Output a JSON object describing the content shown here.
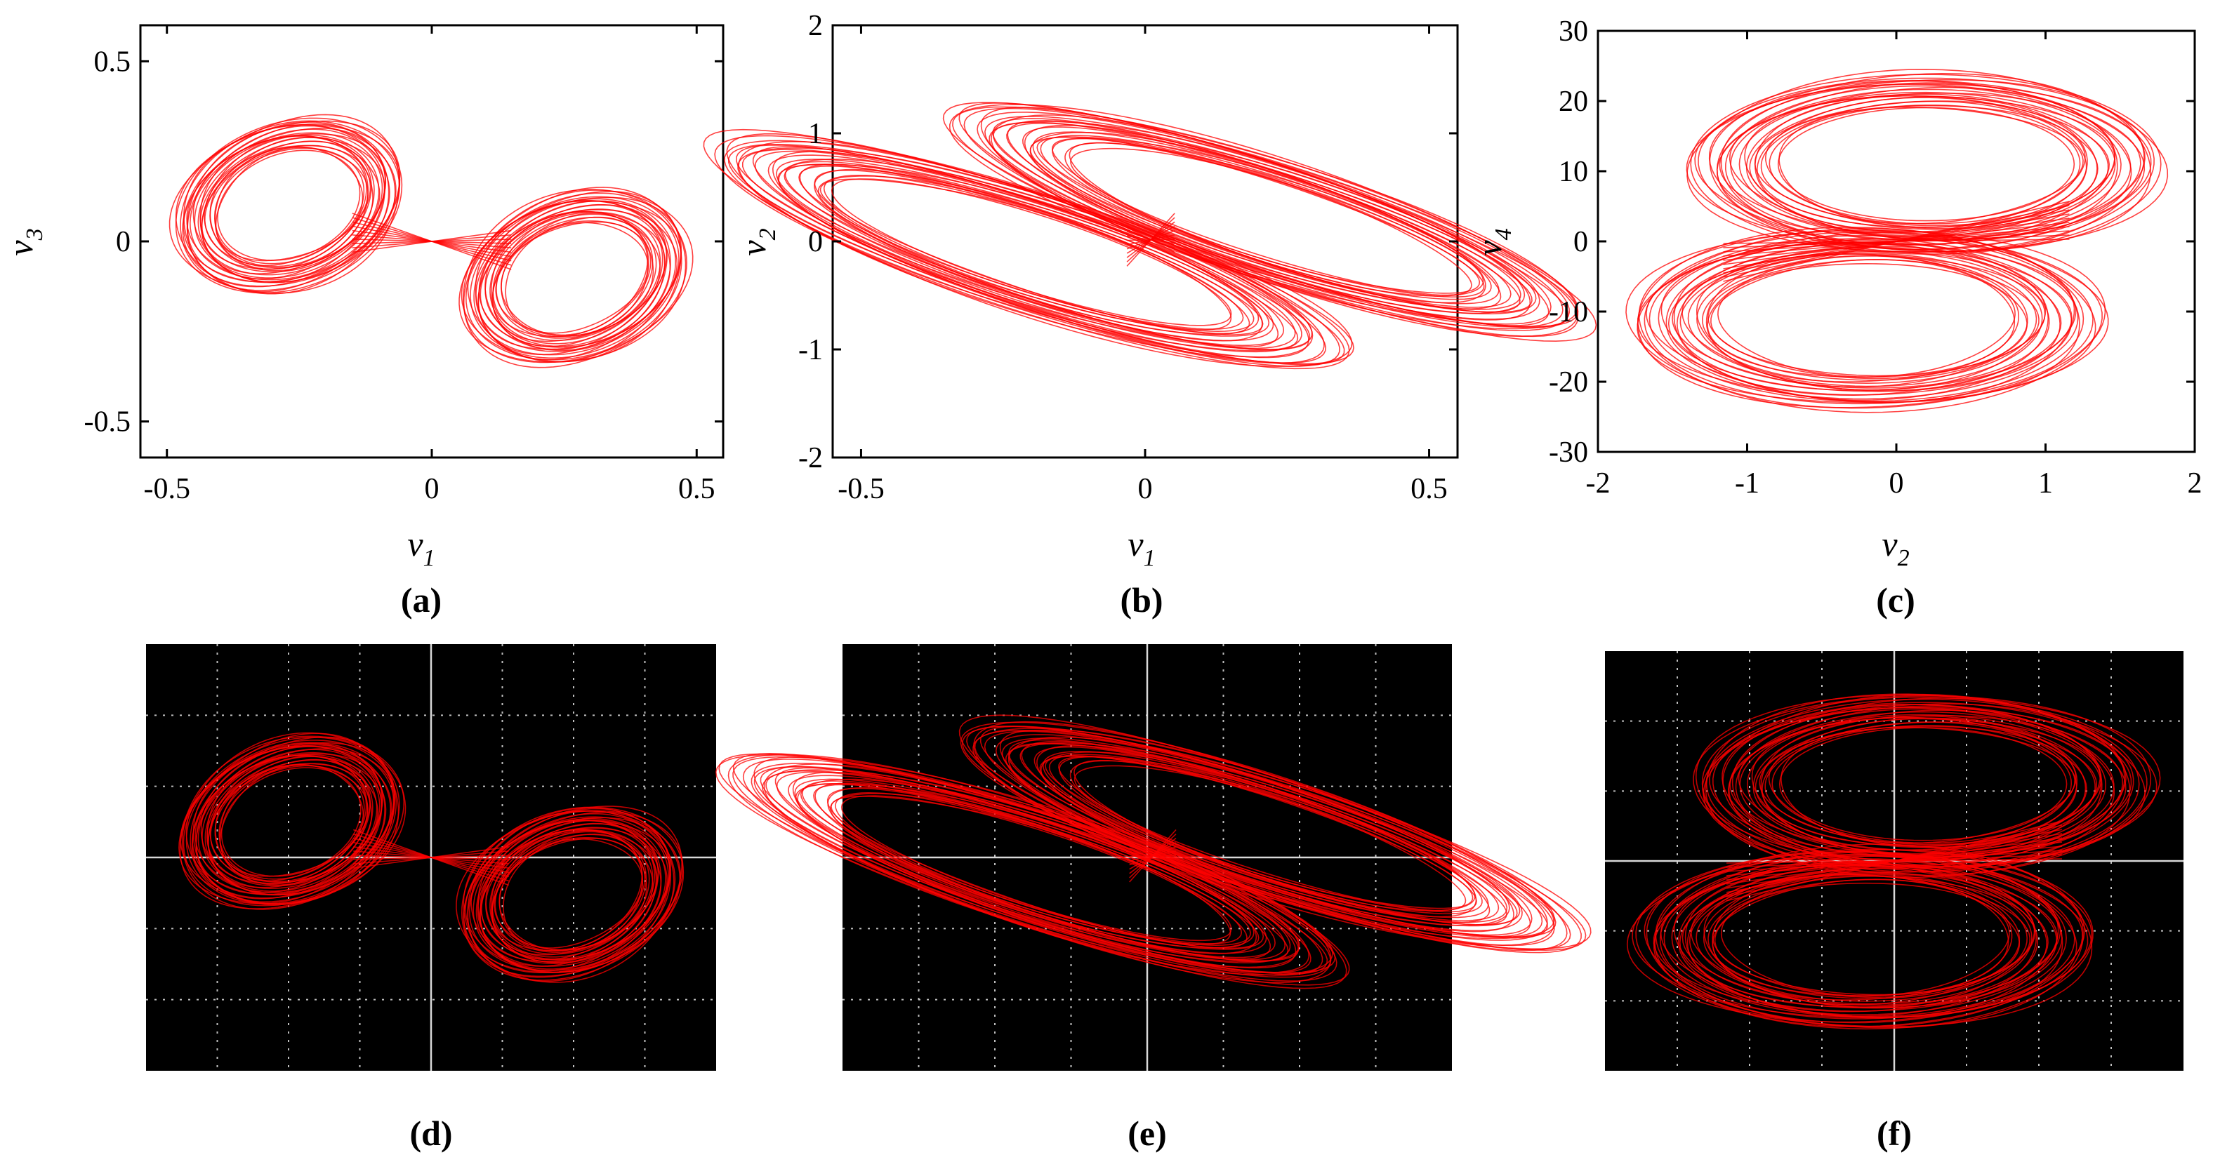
{
  "colors": {
    "trace": "#ff0000",
    "scope_background": "#000000",
    "scope_grid": "#bfbfbf"
  },
  "panel_labels": [
    "(a)",
    "(b)",
    "(c)",
    "(d)",
    "(e)",
    "(f)"
  ],
  "chart_data": [
    {
      "id": "a",
      "type": "scatter",
      "kind": "phase-portrait",
      "xlabel": "v",
      "xlabel_sub": "1",
      "ylabel": "v",
      "ylabel_sub": "3",
      "xlim": [
        -0.55,
        0.55
      ],
      "ylim": [
        -0.6,
        0.6
      ],
      "xticks": [
        -0.5,
        0,
        0.5
      ],
      "xtick_labels": [
        "-0.5",
        "0",
        "0.5"
      ],
      "yticks": [
        -0.5,
        0,
        0.5
      ],
      "ytick_labels": [
        "-0.5",
        "0",
        "0.5"
      ],
      "attractor": {
        "shape": "figure-eight",
        "lobes": [
          {
            "center": [
              -0.27,
              0.1
            ],
            "half_width": 0.2,
            "half_height": 0.26,
            "tilt_deg": -30
          },
          {
            "center": [
              0.27,
              -0.1
            ],
            "half_width": 0.2,
            "half_height": 0.26,
            "tilt_deg": -30
          }
        ]
      }
    },
    {
      "id": "b",
      "type": "scatter",
      "kind": "phase-portrait",
      "xlabel": "v",
      "xlabel_sub": "1",
      "ylabel": "v",
      "ylabel_sub": "2",
      "xlim": [
        -0.55,
        0.55
      ],
      "ylim": [
        -2,
        2
      ],
      "xticks": [
        -0.5,
        0,
        0.5
      ],
      "xtick_labels": [
        "-0.5",
        "0",
        "0.5"
      ],
      "yticks": [
        -2,
        -1,
        0,
        1,
        2
      ],
      "ytick_labels": [
        "-2",
        "-1",
        "0",
        "1",
        "2"
      ],
      "attractor": {
        "shape": "double-scroll",
        "lobes": [
          {
            "center": [
              -0.2,
              -0.1
            ],
            "half_width": 0.28,
            "half_height": 1.2,
            "tilt_deg": 25
          },
          {
            "center": [
              0.22,
              0.2
            ],
            "half_width": 0.28,
            "half_height": 1.2,
            "tilt_deg": 25
          }
        ]
      }
    },
    {
      "id": "c",
      "type": "scatter",
      "kind": "phase-portrait",
      "xlabel": "v",
      "xlabel_sub": "2",
      "ylabel": "v",
      "ylabel_sub": "4",
      "xlim": [
        -2,
        2
      ],
      "ylim": [
        -30,
        30
      ],
      "xticks": [
        -2,
        -1,
        0,
        1,
        2
      ],
      "xtick_labels": [
        "-2",
        "-1",
        "0",
        "1",
        "2"
      ],
      "yticks": [
        -30,
        -20,
        -10,
        0,
        10,
        20,
        30
      ],
      "ytick_labels": [
        "-30",
        "-20",
        "-10",
        "0",
        "10",
        "20",
        "30"
      ],
      "attractor": {
        "shape": "double-scroll",
        "lobes": [
          {
            "center": [
              0.2,
              11
            ],
            "half_width": 1.6,
            "half_height": 13,
            "tilt_deg": 0
          },
          {
            "center": [
              -0.2,
              -11
            ],
            "half_width": 1.6,
            "half_height": 13,
            "tilt_deg": 0
          }
        ]
      }
    },
    {
      "id": "d",
      "type": "scatter",
      "kind": "oscilloscope",
      "grid_divisions": [
        8,
        6
      ]
    },
    {
      "id": "e",
      "type": "scatter",
      "kind": "oscilloscope",
      "grid_divisions": [
        8,
        6
      ]
    },
    {
      "id": "f",
      "type": "scatter",
      "kind": "oscilloscope",
      "grid_divisions": [
        8,
        6
      ]
    }
  ]
}
